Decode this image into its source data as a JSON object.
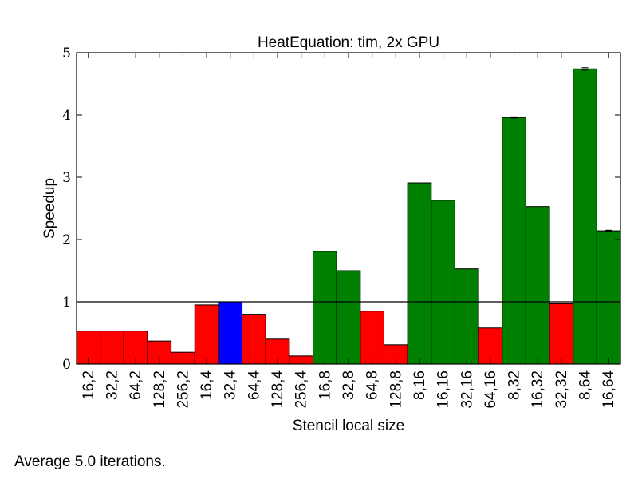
{
  "chart_data": {
    "type": "bar",
    "title": "HeatEquation: tim, 2x GPU",
    "xlabel": "Stencil local size",
    "ylabel": "Speedup",
    "ylim": [
      0,
      5
    ],
    "yticks": [
      0,
      1,
      2,
      3,
      4,
      5
    ],
    "reference_line": 1,
    "grid": false,
    "colors": {
      "slower": "#ff0000",
      "baseline": "#0000ff",
      "faster": "#008000"
    },
    "categories": [
      "16,2",
      "32,2",
      "64,2",
      "128,2",
      "256,2",
      "16,4",
      "32,4",
      "64,4",
      "128,4",
      "256,4",
      "16,8",
      "32,8",
      "64,8",
      "128,8",
      "8,16",
      "16,16",
      "32,16",
      "64,16",
      "8,32",
      "16,32",
      "32,32",
      "8,64",
      "16,64"
    ],
    "values": [
      0.53,
      0.53,
      0.53,
      0.37,
      0.19,
      0.95,
      1.0,
      0.8,
      0.4,
      0.13,
      1.81,
      1.5,
      0.85,
      0.31,
      2.91,
      2.63,
      1.53,
      0.58,
      3.96,
      2.53,
      0.97,
      4.74,
      2.14
    ],
    "error_bars": [
      0,
      0,
      0,
      0,
      0,
      0,
      0,
      0,
      0,
      0,
      0,
      0,
      0,
      0,
      0,
      0,
      0,
      0,
      0.01,
      0,
      0,
      0.02,
      0.01
    ]
  },
  "footnote": "Average 5.0 iterations."
}
